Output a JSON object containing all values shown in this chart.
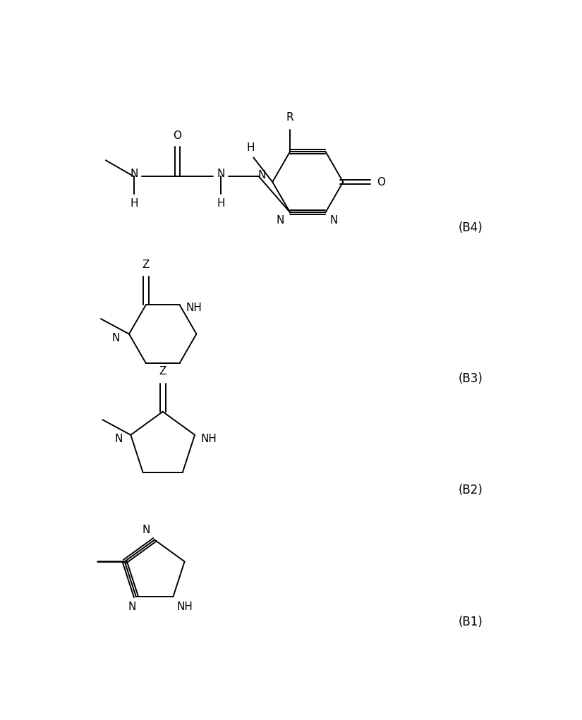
{
  "bg_color": "#ffffff",
  "lw": 1.4,
  "fs": 11,
  "b1_label": "(B1)",
  "b2_label": "(B2)",
  "b3_label": "(B3)",
  "b4_label": "(B4)"
}
